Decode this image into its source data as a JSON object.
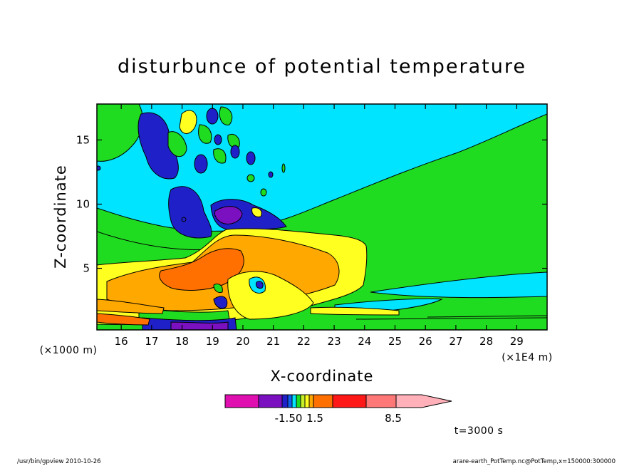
{
  "chart_data": {
    "type": "heatmap",
    "title": "disturbunce of potential temperature",
    "xlabel": "X-coordinate",
    "ylabel": "Z-coordinate",
    "x_unit": "(×1E4 m)",
    "y_unit": "(×1000 m)",
    "xlim": [
      15.2,
      30.0
    ],
    "ylim": [
      0.2,
      17.8
    ],
    "x_ticks": [
      16,
      17,
      18,
      19,
      20,
      21,
      22,
      23,
      24,
      25,
      26,
      27,
      28,
      29
    ],
    "y_ticks": [
      5,
      10,
      15
    ],
    "time_label": "t=3000 s",
    "colorbar": {
      "colors": [
        "#e010b0",
        "#7a10c0",
        "#2020c8",
        "#1060f0",
        "#00e4ff",
        "#20dc20",
        "#c8f028",
        "#ffff20",
        "#ffa800",
        "#ff7000",
        "#ff1818",
        "#ff7878",
        "#ffb0b8"
      ],
      "tick_labels": [
        "-1.50",
        "1.5",
        "8.5"
      ]
    }
  },
  "footer": {
    "left": "/usr/bin/gpview   2010-10-26",
    "right": "arare-earth_PotTemp.nc@PotTemp,x=150000:300000"
  }
}
